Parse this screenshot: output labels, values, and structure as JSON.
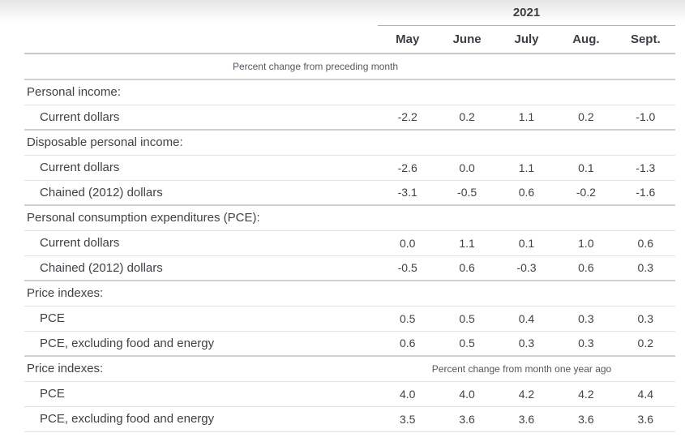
{
  "table": {
    "year_header": "2021",
    "months": [
      "May",
      "June",
      "July",
      "Aug.",
      "Sept."
    ],
    "subtitle_preceding": "Percent change from preceding month",
    "sections": [
      {
        "header": "Personal income:",
        "note": null,
        "rows": [
          {
            "label": "Current dollars",
            "values": [
              "-2.2",
              "0.2",
              "1.1",
              "0.2",
              "-1.0"
            ]
          }
        ]
      },
      {
        "header": "Disposable personal income:",
        "note": null,
        "rows": [
          {
            "label": "Current dollars",
            "values": [
              "-2.6",
              "0.0",
              "1.1",
              "0.1",
              "-1.3"
            ]
          },
          {
            "label": "Chained (2012) dollars",
            "values": [
              "-3.1",
              "-0.5",
              "0.6",
              "-0.2",
              "-1.6"
            ]
          }
        ]
      },
      {
        "header": "Personal consumption expenditures (PCE):",
        "note": null,
        "rows": [
          {
            "label": "Current dollars",
            "values": [
              "0.0",
              "1.1",
              "0.1",
              "1.0",
              "0.6"
            ]
          },
          {
            "label": "Chained (2012) dollars",
            "values": [
              "-0.5",
              "0.6",
              "-0.3",
              "0.6",
              "0.3"
            ]
          }
        ]
      },
      {
        "header": "Price indexes:",
        "note": null,
        "rows": [
          {
            "label": "PCE",
            "values": [
              "0.5",
              "0.5",
              "0.4",
              "0.3",
              "0.3"
            ]
          },
          {
            "label": "PCE, excluding food and energy",
            "values": [
              "0.6",
              "0.5",
              "0.3",
              "0.3",
              "0.2"
            ]
          }
        ]
      },
      {
        "header": "Price indexes:",
        "note": "Percent change from month one year ago",
        "rows": [
          {
            "label": "PCE",
            "values": [
              "4.0",
              "4.0",
              "4.2",
              "4.2",
              "4.4"
            ]
          },
          {
            "label": "PCE, excluding food and energy",
            "values": [
              "3.5",
              "3.6",
              "3.6",
              "3.6",
              "3.6"
            ]
          }
        ]
      }
    ],
    "colors": {
      "text": "#3e4247",
      "header_text": "#3b3f45",
      "subtitle_text": "#55585e",
      "line_light": "#e2e2e2",
      "line_section": "#d0d0d0",
      "line_months": "#c8c8c8",
      "line_year": "#b0b0b0",
      "top_shade_start": "#e5e5e5"
    }
  },
  "chart_data": {
    "type": "table",
    "title": "2021",
    "categories": [
      "May",
      "June",
      "July",
      "Aug.",
      "Sept."
    ],
    "units_top_block": "Percent change from preceding month",
    "units_bottom_block": "Percent change from month one year ago",
    "series": [
      {
        "name": "Personal income: Current dollars",
        "values": [
          -2.2,
          0.2,
          1.1,
          0.2,
          -1.0
        ]
      },
      {
        "name": "Disposable personal income: Current dollars",
        "values": [
          -2.6,
          0.0,
          1.1,
          0.1,
          -1.3
        ]
      },
      {
        "name": "Disposable personal income: Chained (2012) dollars",
        "values": [
          -3.1,
          -0.5,
          0.6,
          -0.2,
          -1.6
        ]
      },
      {
        "name": "Personal consumption expenditures (PCE): Current dollars",
        "values": [
          0.0,
          1.1,
          0.1,
          1.0,
          0.6
        ]
      },
      {
        "name": "Personal consumption expenditures (PCE): Chained (2012) dollars",
        "values": [
          -0.5,
          0.6,
          -0.3,
          0.6,
          0.3
        ]
      },
      {
        "name": "Price indexes (percent change from preceding month): PCE",
        "values": [
          0.5,
          0.5,
          0.4,
          0.3,
          0.3
        ]
      },
      {
        "name": "Price indexes (percent change from preceding month): PCE, excluding food and energy",
        "values": [
          0.6,
          0.5,
          0.3,
          0.3,
          0.2
        ]
      },
      {
        "name": "Price indexes (percent change from month one year ago): PCE",
        "values": [
          4.0,
          4.0,
          4.2,
          4.2,
          4.4
        ]
      },
      {
        "name": "Price indexes (percent change from month one year ago): PCE, excluding food and energy",
        "values": [
          3.5,
          3.6,
          3.6,
          3.6,
          3.6
        ]
      }
    ]
  }
}
